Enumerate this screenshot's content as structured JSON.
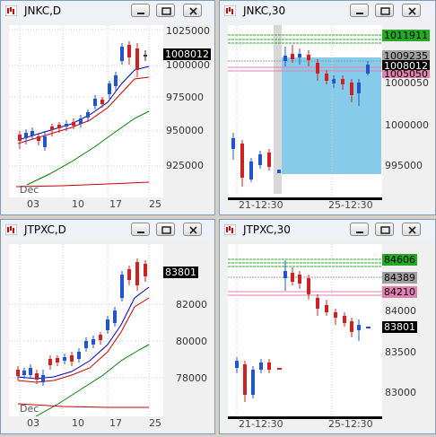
{
  "windows": [
    {
      "title": "JNKC,D",
      "prices": [
        "1025000",
        "1000000",
        "975000",
        "950000",
        "925000"
      ],
      "current": "1008012",
      "dates": [
        "03",
        "10",
        "17",
        "25"
      ],
      "month": "Dec"
    },
    {
      "title": "JNKC,30",
      "prices": [
        "1011911",
        "1009235",
        "1008012",
        "1000000",
        "995000"
      ],
      "overlap_labels": [
        "1005050",
        "1000050"
      ],
      "dates": [
        "21-12:30",
        "25-12:30"
      ]
    },
    {
      "title": "JTPXC,D",
      "prices": [
        "83801",
        "82000",
        "80000",
        "78000"
      ],
      "dates": [
        "03",
        "10",
        "17",
        "25"
      ],
      "month": "Dec"
    },
    {
      "title": "JTPXC,30",
      "prices": [
        "84606",
        "84389",
        "84210",
        "84000",
        "83801",
        "83500",
        "83000"
      ],
      "dates": [
        "21-12:30",
        "25-12:30"
      ]
    }
  ],
  "colors": {
    "bull": "#2255cc",
    "bear": "#cc2222",
    "ma_blue": "#0000cc",
    "ma_red": "#cc0000",
    "ma_green": "#008000",
    "current_bg": "#000000",
    "green_label": "#22aa22",
    "gray_label": "#a0a0a0",
    "pink_label": "#e080b0",
    "highlight": "#87cbea"
  }
}
